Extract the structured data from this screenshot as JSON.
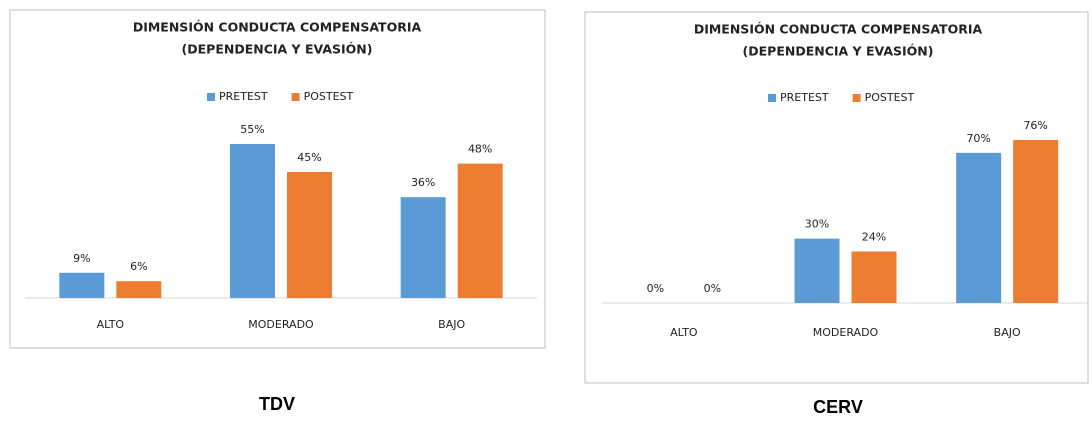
{
  "chart_data": [
    {
      "type": "bar",
      "title": "DIMENSIÓN CONDUCTA COMPENSATORIA",
      "subtitle": "(DEPENDENCIA Y EVASIÓN)",
      "caption": "TDV",
      "categories": [
        "ALTO",
        "MODERADO",
        "BAJO"
      ],
      "series": [
        {
          "name": "PRETEST",
          "color": "#5b9bd5",
          "values": [
            9,
            55,
            36
          ],
          "value_labels": [
            "9%",
            "55%",
            "36%"
          ]
        },
        {
          "name": "POSTEST",
          "color": "#ed7d31",
          "values": [
            6,
            45,
            48
          ],
          "value_labels": [
            "6%",
            "45%",
            "48%"
          ]
        }
      ],
      "legend": "top"
    },
    {
      "type": "bar",
      "title": "DIMENSIÓN CONDUCTA COMPENSATORIA",
      "subtitle": "(DEPENDENCIA Y EVASIÓN)",
      "caption": "CERV",
      "categories": [
        "ALTO",
        "MODERADO",
        "BAJO"
      ],
      "series": [
        {
          "name": "PRETEST",
          "color": "#5b9bd5",
          "values": [
            0,
            30,
            70
          ],
          "value_labels": [
            "0%",
            "30%",
            "70%"
          ]
        },
        {
          "name": "POSTEST",
          "color": "#ed7d31",
          "values": [
            0,
            24,
            76
          ],
          "value_labels": [
            "0%",
            "24%",
            "76%"
          ]
        }
      ],
      "legend": "top"
    }
  ]
}
